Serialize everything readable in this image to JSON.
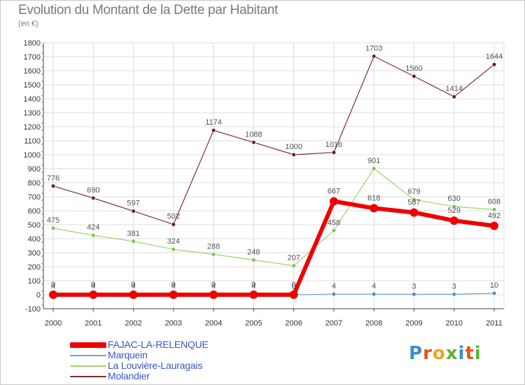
{
  "title": "Evolution du Montant de la Dette par Habitant",
  "unit": "(en €)",
  "logo": {
    "text": "Proxiti",
    "colors": [
      "#3a8fd0",
      "#e5541b",
      "#f0a31c",
      "#5cb531",
      "#3a8fd0",
      "#e5541b",
      "#5cb531"
    ]
  },
  "chart_data": {
    "type": "line",
    "x": [
      "2000",
      "2001",
      "2002",
      "2003",
      "2004",
      "2005",
      "2006",
      "2007",
      "2008",
      "2009",
      "2010",
      "2011"
    ],
    "ylim": [
      -100,
      1800
    ],
    "yticks": [
      -100,
      0,
      100,
      200,
      300,
      400,
      500,
      600,
      700,
      800,
      900,
      1000,
      1100,
      1200,
      1300,
      1400,
      1500,
      1600,
      1700,
      1800
    ],
    "grid": true,
    "legend_position": "bottom-left",
    "series": [
      {
        "name": "Molandier",
        "color": "#7a3030",
        "marker": "#6b1f1f",
        "width": 1.2,
        "r": 2.8,
        "values": [
          776,
          690,
          597,
          502,
          1174,
          1088,
          1000,
          1016,
          1703,
          1560,
          1414,
          1644
        ]
      },
      {
        "name": "La Louvière-Lauragais",
        "color": "#9bd46a",
        "marker": "#7fc24a",
        "width": 1.2,
        "r": 2.8,
        "values": [
          475,
          424,
          381,
          324,
          288,
          248,
          207,
          458,
          901,
          679,
          630,
          608
        ]
      },
      {
        "name": "Marquein",
        "color": "#6aa6d4",
        "marker": "#4a8ec4",
        "width": 1.2,
        "r": 2.8,
        "values": [
          4,
          4,
          4,
          4,
          4,
          4,
          0,
          4,
          4,
          3,
          3,
          10
        ]
      },
      {
        "name": "FAJAC-LA-RELENQUE",
        "color": "#ee0000",
        "marker": "#ee0000",
        "width": 6,
        "r": 6,
        "values": [
          0,
          0,
          0,
          0,
          0,
          0,
          0,
          667,
          618,
          587,
          529,
          492
        ]
      }
    ]
  }
}
